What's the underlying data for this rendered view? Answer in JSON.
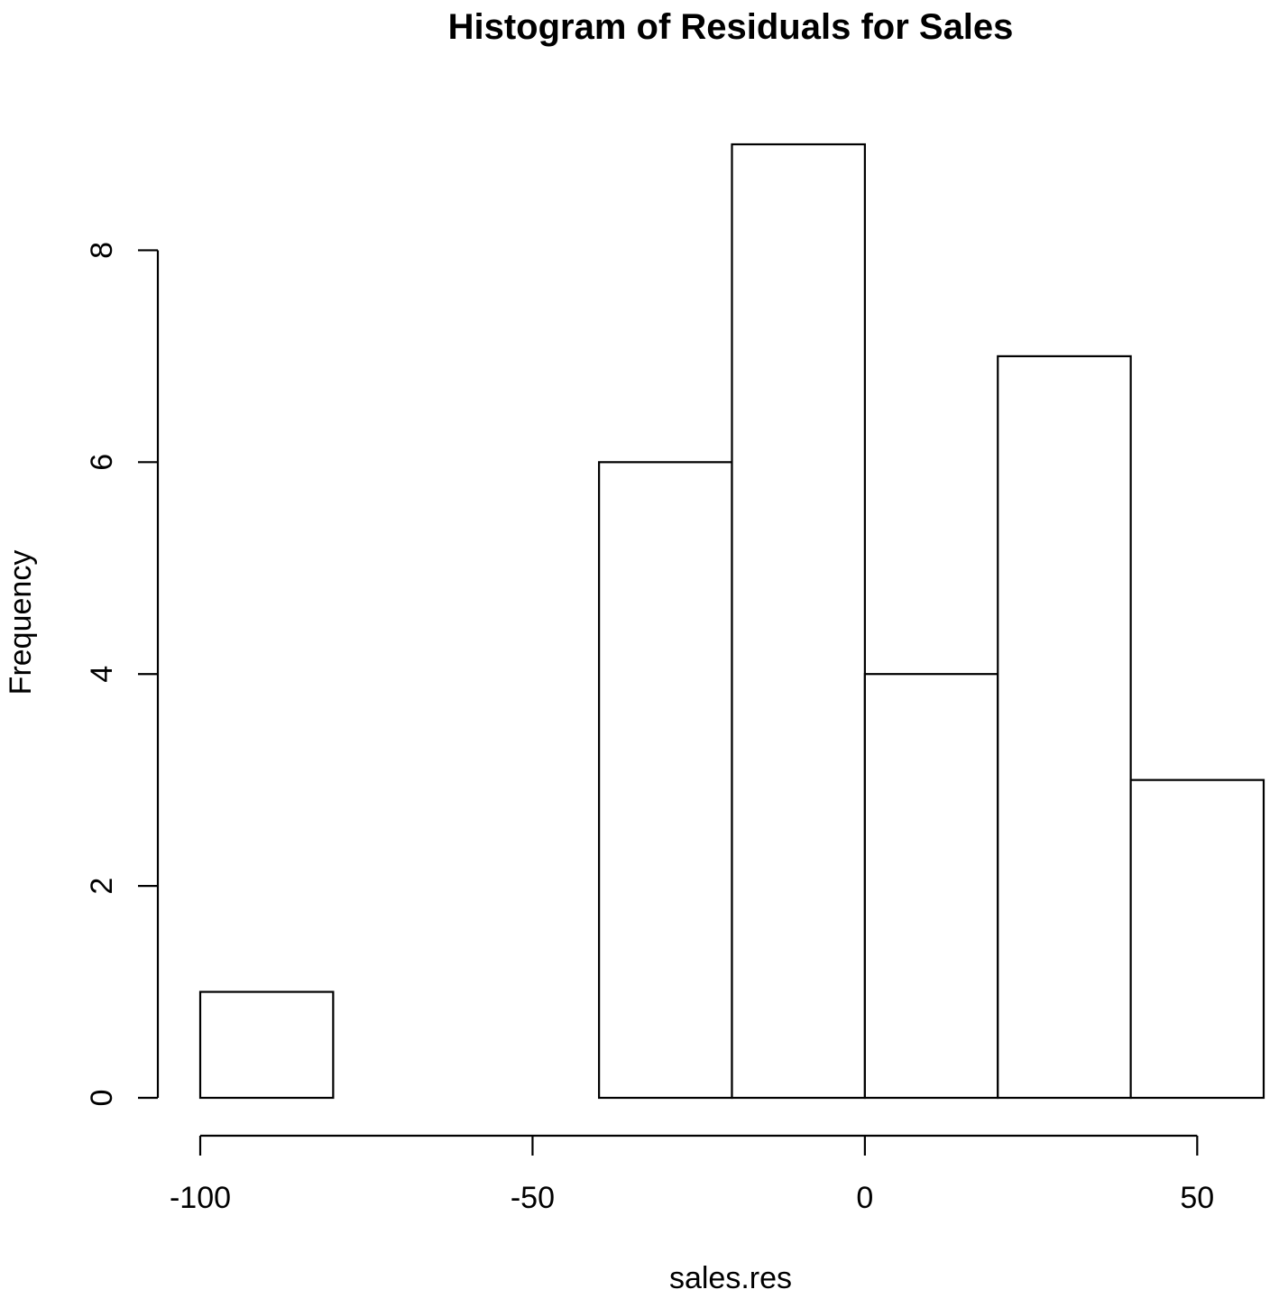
{
  "chart_data": {
    "type": "bar",
    "subtype": "histogram",
    "title": "Histogram of Residuals for Sales",
    "xlabel": "sales.res",
    "ylabel": "Frequency",
    "bins": [
      {
        "from": -100,
        "to": -80,
        "count": 1
      },
      {
        "from": -80,
        "to": -60,
        "count": 0
      },
      {
        "from": -60,
        "to": -40,
        "count": 0
      },
      {
        "from": -40,
        "to": -20,
        "count": 6
      },
      {
        "from": -20,
        "to": 0,
        "count": 9
      },
      {
        "from": 0,
        "to": 20,
        "count": 4
      },
      {
        "from": 20,
        "to": 40,
        "count": 7
      },
      {
        "from": 40,
        "to": 60,
        "count": 3
      }
    ],
    "xlim": [
      -100,
      60
    ],
    "ylim": [
      0,
      9
    ],
    "x_ticks": [
      -100,
      -50,
      0,
      50
    ],
    "x_tick_labels": [
      "-100",
      "-50",
      "0",
      "50"
    ],
    "y_ticks": [
      0,
      2,
      4,
      6,
      8
    ],
    "y_tick_labels": [
      "0",
      "2",
      "4",
      "6",
      "8"
    ],
    "grid": false,
    "colors": {
      "bar_fill": "#ffffff",
      "bar_stroke": "#000000"
    }
  }
}
